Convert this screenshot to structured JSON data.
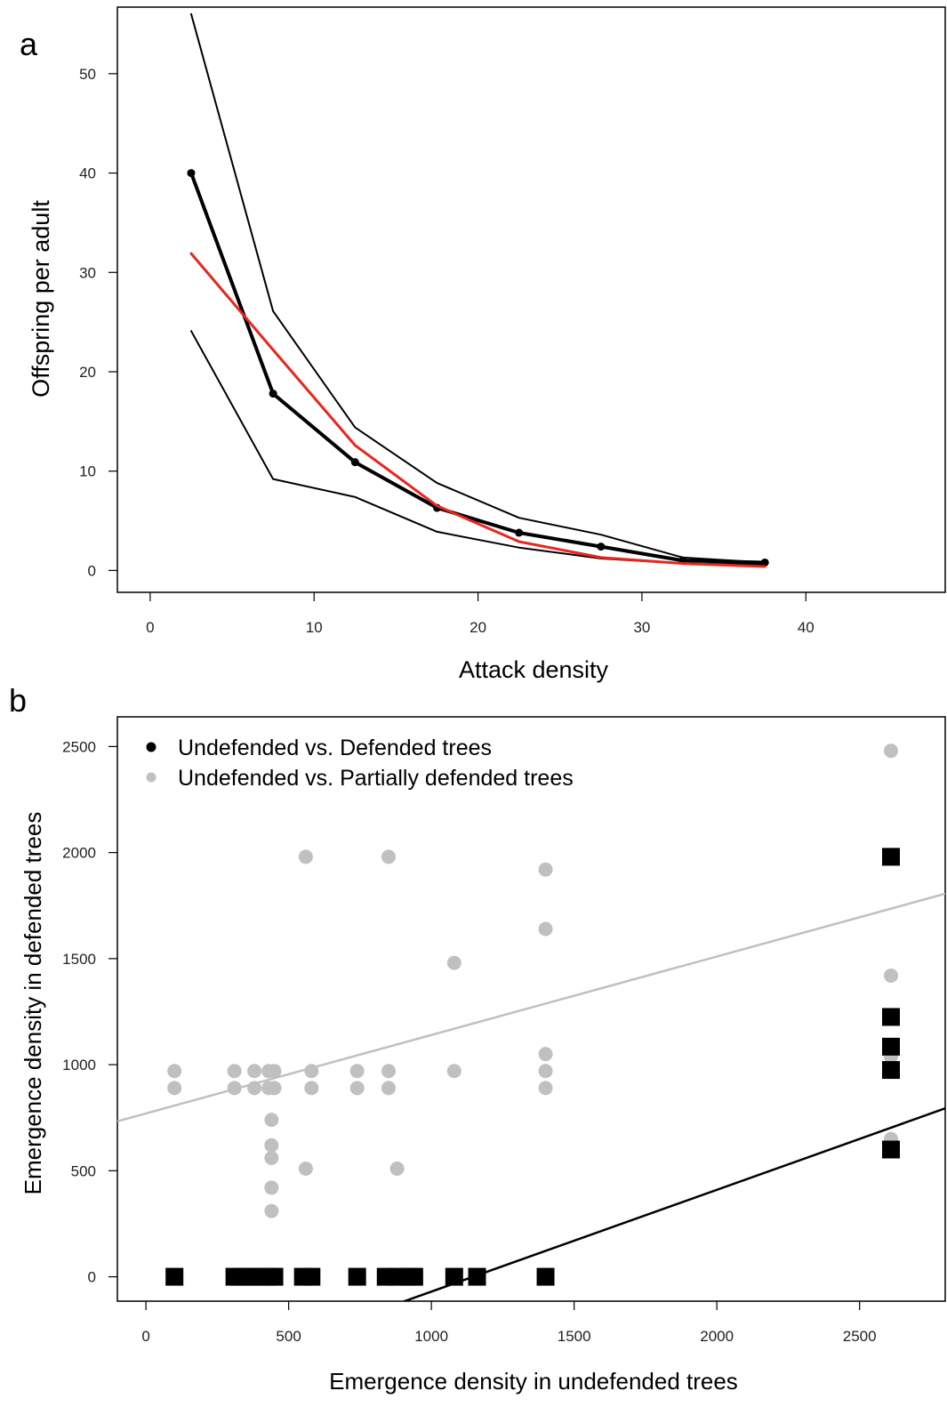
{
  "chart_data": [
    {
      "panel": "a",
      "type": "line",
      "xlabel": "Attack density",
      "ylabel": "Offspring per adult",
      "xlim": [
        -2,
        48.5
      ],
      "ylim": [
        -2.2,
        56.7
      ],
      "xticks": [
        0,
        10,
        20,
        30,
        40
      ],
      "yticks": [
        0,
        10,
        20,
        30,
        40,
        50
      ],
      "grid": false,
      "series": [
        {
          "role": "mean",
          "color": "#000000",
          "markers": true,
          "x": [
            2.5,
            7.5,
            12.5,
            17.5,
            22.5,
            27.5,
            32.5,
            37.5
          ],
          "y": [
            40.0,
            17.8,
            10.9,
            6.3,
            3.8,
            2.4,
            1.0,
            0.8
          ]
        },
        {
          "role": "upper",
          "color": "#000000",
          "markers": false,
          "x": [
            2.5,
            7.5,
            12.5,
            17.5,
            22.5,
            27.5,
            32.5,
            37.5
          ],
          "y": [
            56.0,
            26.1,
            14.4,
            8.8,
            5.3,
            3.6,
            1.3,
            0.8
          ]
        },
        {
          "role": "lower",
          "color": "#000000",
          "markers": false,
          "x": [
            2.5,
            7.5,
            12.5,
            17.5,
            22.5,
            27.5,
            32.5,
            37.5
          ],
          "y": [
            24.1,
            9.2,
            7.4,
            3.9,
            2.3,
            1.2,
            0.7,
            0.6
          ]
        },
        {
          "role": "fit",
          "color": "#e8261f",
          "markers": false,
          "x": [
            2.5,
            7.5,
            12.5,
            17.5,
            22.5,
            27.5,
            32.5,
            37.5
          ],
          "y": [
            31.9,
            22.2,
            12.6,
            6.5,
            2.9,
            1.3,
            0.7,
            0.4
          ]
        }
      ]
    },
    {
      "panel": "b",
      "type": "scatter",
      "xlabel": "Emergence density in undefended trees",
      "ylabel": "Emergence density in defended trees",
      "xlim": [
        -100,
        2800
      ],
      "ylim": [
        -115,
        2640
      ],
      "xticks": [
        0,
        500,
        1000,
        1500,
        2000,
        2500
      ],
      "yticks": [
        0,
        500,
        1000,
        1500,
        2000,
        2500
      ],
      "grid": false,
      "legend_position": "top-left",
      "series": [
        {
          "name": "Undefended vs. Defended trees",
          "color": "#000000",
          "marker": "square",
          "x": [
            100,
            310,
            340,
            370,
            400,
            430,
            450,
            550,
            580,
            740,
            840,
            880,
            920,
            940,
            1080,
            1160,
            1400,
            2610,
            2610,
            2610,
            2610,
            2610
          ],
          "y": [
            0,
            0,
            0,
            0,
            0,
            0,
            0,
            0,
            0,
            0,
            0,
            0,
            0,
            0,
            0,
            0,
            0,
            1980,
            1225,
            1085,
            975,
            600
          ],
          "fit": {
            "intercept": -550,
            "slope": 0.48
          }
        },
        {
          "name": "Undefended vs. Partially defended trees",
          "color": "#c0c0c0",
          "marker": "circle",
          "x": [
            100,
            100,
            310,
            310,
            380,
            380,
            430,
            430,
            450,
            450,
            440,
            440,
            440,
            440,
            440,
            560,
            560,
            580,
            580,
            740,
            740,
            850,
            850,
            850,
            880,
            1080,
            1080,
            1400,
            1400,
            1400,
            1400,
            1400,
            2610,
            2610,
            2610,
            2610
          ],
          "y": [
            970,
            890,
            970,
            890,
            970,
            890,
            970,
            890,
            970,
            890,
            740,
            620,
            560,
            420,
            310,
            1980,
            510,
            970,
            890,
            970,
            890,
            1980,
            970,
            890,
            510,
            1480,
            970,
            890,
            1920,
            1640,
            1050,
            970,
            650,
            2480,
            1420,
            1040
          ],
          "fit": {
            "intercept": 770,
            "slope": 0.37
          }
        }
      ]
    }
  ],
  "panel_labels": {
    "a": "a",
    "b": "b"
  }
}
